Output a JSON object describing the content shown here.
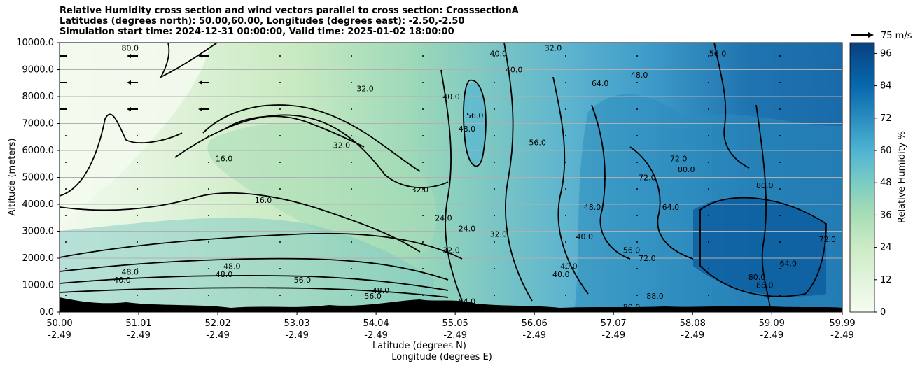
{
  "titles": {
    "line1": "Relative Humidity cross section and wind vectors parallel to cross section: CrosssectionA",
    "line2": "Latitudes (degrees north): 50.00,60.00, Longitudes (degrees east): -2.50,-2.50",
    "line3": "Simulation start time: 2024-12-31 00:00:00, Valid time: 2025-01-02 18:00:00"
  },
  "chart_data": {
    "type": "contour",
    "title": "Relative Humidity cross section and wind vectors parallel to cross section: CrosssectionA",
    "ylabel": "Altitude (meters)",
    "xlabel_lat": "Latitude (degrees N)",
    "xlabel_lon": "Longitude (degrees E)",
    "ylim": [
      0,
      10000
    ],
    "yticks": [
      "0.0",
      "1000.0",
      "2000.0",
      "3000.0",
      "4000.0",
      "5000.0",
      "6000.0",
      "7000.0",
      "8000.0",
      "9000.0",
      "10000.0"
    ],
    "xticks_lat": [
      "50.00",
      "51.01",
      "52.02",
      "53.03",
      "54.04",
      "55.05",
      "56.06",
      "57.07",
      "58.08",
      "59.09",
      "59.99"
    ],
    "xticks_lon": [
      "-2.49",
      "-2.49",
      "-2.49",
      "-2.49",
      "-2.49",
      "-2.49",
      "-2.49",
      "-2.49",
      "-2.49",
      "-2.49",
      "-2.49"
    ],
    "colorbar": {
      "label": "Relative Humidity %",
      "range": [
        0,
        100
      ],
      "ticks": [
        "0",
        "12",
        "24",
        "36",
        "48",
        "60",
        "72",
        "84",
        "96"
      ]
    },
    "quiver_key": "75 m/s",
    "contour_labels": [
      {
        "text": "16.0",
        "lat": 52.1,
        "alt": 5700
      },
      {
        "text": "16.0",
        "lat": 52.6,
        "alt": 4150
      },
      {
        "text": "32.0",
        "lat": 53.6,
        "alt": 6200
      },
      {
        "text": "32.0",
        "lat": 54.6,
        "alt": 4550
      },
      {
        "text": "32.0",
        "lat": 53.9,
        "alt": 8300
      },
      {
        "text": "24.0",
        "lat": 54.9,
        "alt": 3500
      },
      {
        "text": "24.0",
        "lat": 55.2,
        "alt": 3100
      },
      {
        "text": "32.0",
        "lat": 55.0,
        "alt": 2300
      },
      {
        "text": "32.0",
        "lat": 55.6,
        "alt": 2900
      },
      {
        "text": "40.0",
        "lat": 55.0,
        "alt": 8000
      },
      {
        "text": "48.0",
        "lat": 55.2,
        "alt": 6800
      },
      {
        "text": "56.0",
        "lat": 55.3,
        "alt": 7300
      },
      {
        "text": "56.0",
        "lat": 56.1,
        "alt": 6300
      },
      {
        "text": "40.0",
        "lat": 55.6,
        "alt": 9600
      },
      {
        "text": "40.0",
        "lat": 55.8,
        "alt": 9000
      },
      {
        "text": "32.0",
        "lat": 56.3,
        "alt": 9800
      },
      {
        "text": "64.0",
        "lat": 56.9,
        "alt": 8500
      },
      {
        "text": "48.0",
        "lat": 57.4,
        "alt": 8800
      },
      {
        "text": "48.0",
        "lat": 56.8,
        "alt": 3900
      },
      {
        "text": "40.0",
        "lat": 56.7,
        "alt": 2800
      },
      {
        "text": "40.0",
        "lat": 56.5,
        "alt": 1700
      },
      {
        "text": "40.0",
        "lat": 56.4,
        "alt": 1400
      },
      {
        "text": "72.0",
        "lat": 57.5,
        "alt": 5000
      },
      {
        "text": "72.0",
        "lat": 57.9,
        "alt": 5700
      },
      {
        "text": "80.0",
        "lat": 58.0,
        "alt": 5300
      },
      {
        "text": "80.0",
        "lat": 59.0,
        "alt": 4700
      },
      {
        "text": "64.0",
        "lat": 57.8,
        "alt": 3900
      },
      {
        "text": "72.0",
        "lat": 57.5,
        "alt": 2000
      },
      {
        "text": "56.0",
        "lat": 57.3,
        "alt": 2300
      },
      {
        "text": "72.0",
        "lat": 59.8,
        "alt": 2700
      },
      {
        "text": "64.0",
        "lat": 59.3,
        "alt": 1800
      },
      {
        "text": "48.0",
        "lat": 50.9,
        "alt": 1500
      },
      {
        "text": "48.0",
        "lat": 52.2,
        "alt": 1700
      },
      {
        "text": "48.0",
        "lat": 52.1,
        "alt": 1400
      },
      {
        "text": "56.0",
        "lat": 53.1,
        "alt": 1200
      },
      {
        "text": "56.0",
        "lat": 54.0,
        "alt": 600
      },
      {
        "text": "48.0",
        "lat": 54.1,
        "alt": 800
      },
      {
        "text": "40.0",
        "lat": 50.8,
        "alt": 1200
      },
      {
        "text": "64.0",
        "lat": 55.2,
        "alt": 400
      },
      {
        "text": "80.0",
        "lat": 58.9,
        "alt": 1300
      },
      {
        "text": "88.0",
        "lat": 59.0,
        "alt": 1000
      },
      {
        "text": "88.0",
        "lat": 57.6,
        "alt": 600
      },
      {
        "text": "80.0",
        "lat": 57.3,
        "alt": 200
      },
      {
        "text": "80.0",
        "lat": 50.9,
        "alt": 9800
      },
      {
        "text": "56.0",
        "lat": 58.4,
        "alt": 9600
      }
    ]
  }
}
